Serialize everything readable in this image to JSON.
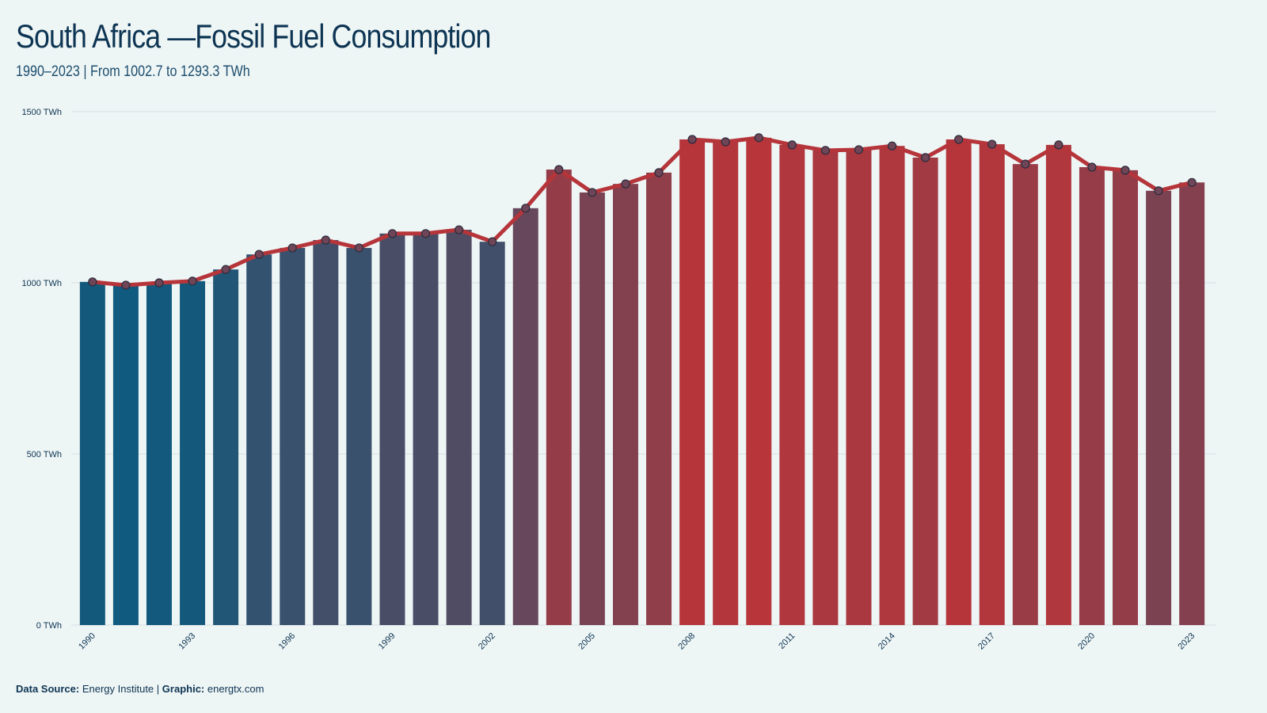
{
  "chart_data": {
    "type": "bar-line",
    "title": "South Africa —Fossil Fuel Consumption",
    "subtitle": "1990–2023 | From 1002.7  to 1293.3  TWh",
    "x": [
      1990,
      1991,
      1992,
      1993,
      1994,
      1995,
      1996,
      1997,
      1998,
      1999,
      2000,
      2001,
      2002,
      2003,
      2004,
      2005,
      2006,
      2007,
      2008,
      2009,
      2010,
      2011,
      2012,
      2013,
      2014,
      2015,
      2016,
      2017,
      2018,
      2019,
      2020,
      2021,
      2022,
      2023
    ],
    "values": [
      1002.7,
      993,
      1000,
      1005,
      1039,
      1083,
      1102,
      1125,
      1102,
      1144,
      1144,
      1155,
      1120,
      1218,
      1331,
      1264,
      1289,
      1322,
      1419,
      1412,
      1424,
      1403,
      1387,
      1389,
      1400,
      1366,
      1419,
      1405,
      1347,
      1403,
      1338,
      1329,
      1269,
      1293.3
    ],
    "xlim": [
      1989.6,
      2023.4
    ],
    "xticks": [
      1990,
      1993,
      1996,
      1999,
      2002,
      2005,
      2008,
      2011,
      2014,
      2017,
      2020,
      2023
    ],
    "ylim": [
      0,
      1500
    ],
    "yticks": [
      {
        "value": 0,
        "label": "0 TWh"
      },
      {
        "value": 500,
        "label": "500 TWh"
      },
      {
        "value": 1000,
        "label": "1000 TWh"
      },
      {
        "value": 1500,
        "label": "1500 TWh"
      }
    ],
    "grid": true,
    "color_low": "#0f5a7e",
    "color_high": "#b8353a",
    "line_color": "#b5353a",
    "marker_color": "#6e4658",
    "footer": {
      "source_label": "Data Source:",
      "source": "Energy Institute",
      "separator": "|",
      "graphic_label": "Graphic:",
      "graphic": "energtx.com"
    }
  }
}
